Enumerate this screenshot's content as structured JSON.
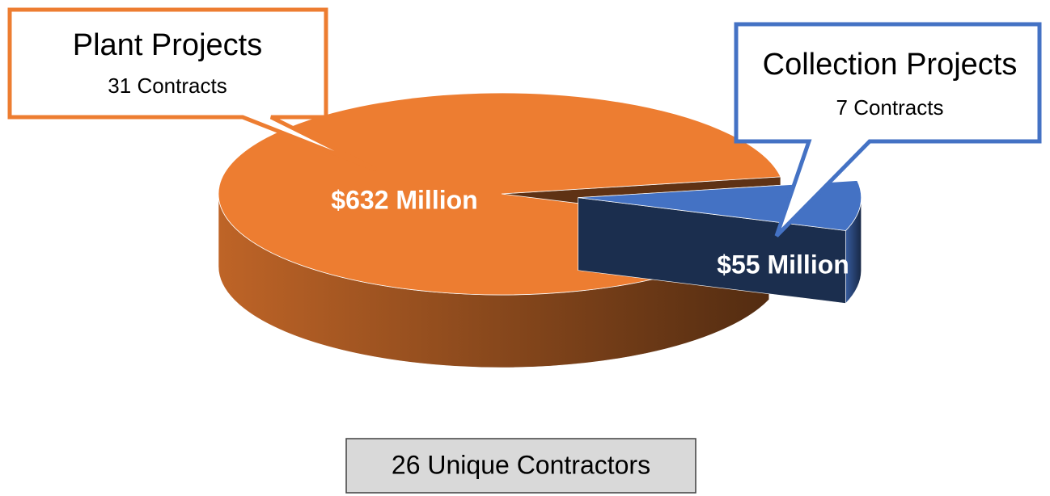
{
  "chart_data": {
    "type": "pie",
    "categories": [
      "Plant Projects",
      "Collection Projects"
    ],
    "annotations": [
      "31 Contracts",
      "7 Contracts"
    ],
    "values": [
      632,
      55
    ],
    "value_labels": [
      "$632 Million",
      "$55 Million"
    ],
    "colors": [
      "#ED7D31",
      "#4472C4"
    ],
    "footer": "26 Unique Contractors"
  }
}
